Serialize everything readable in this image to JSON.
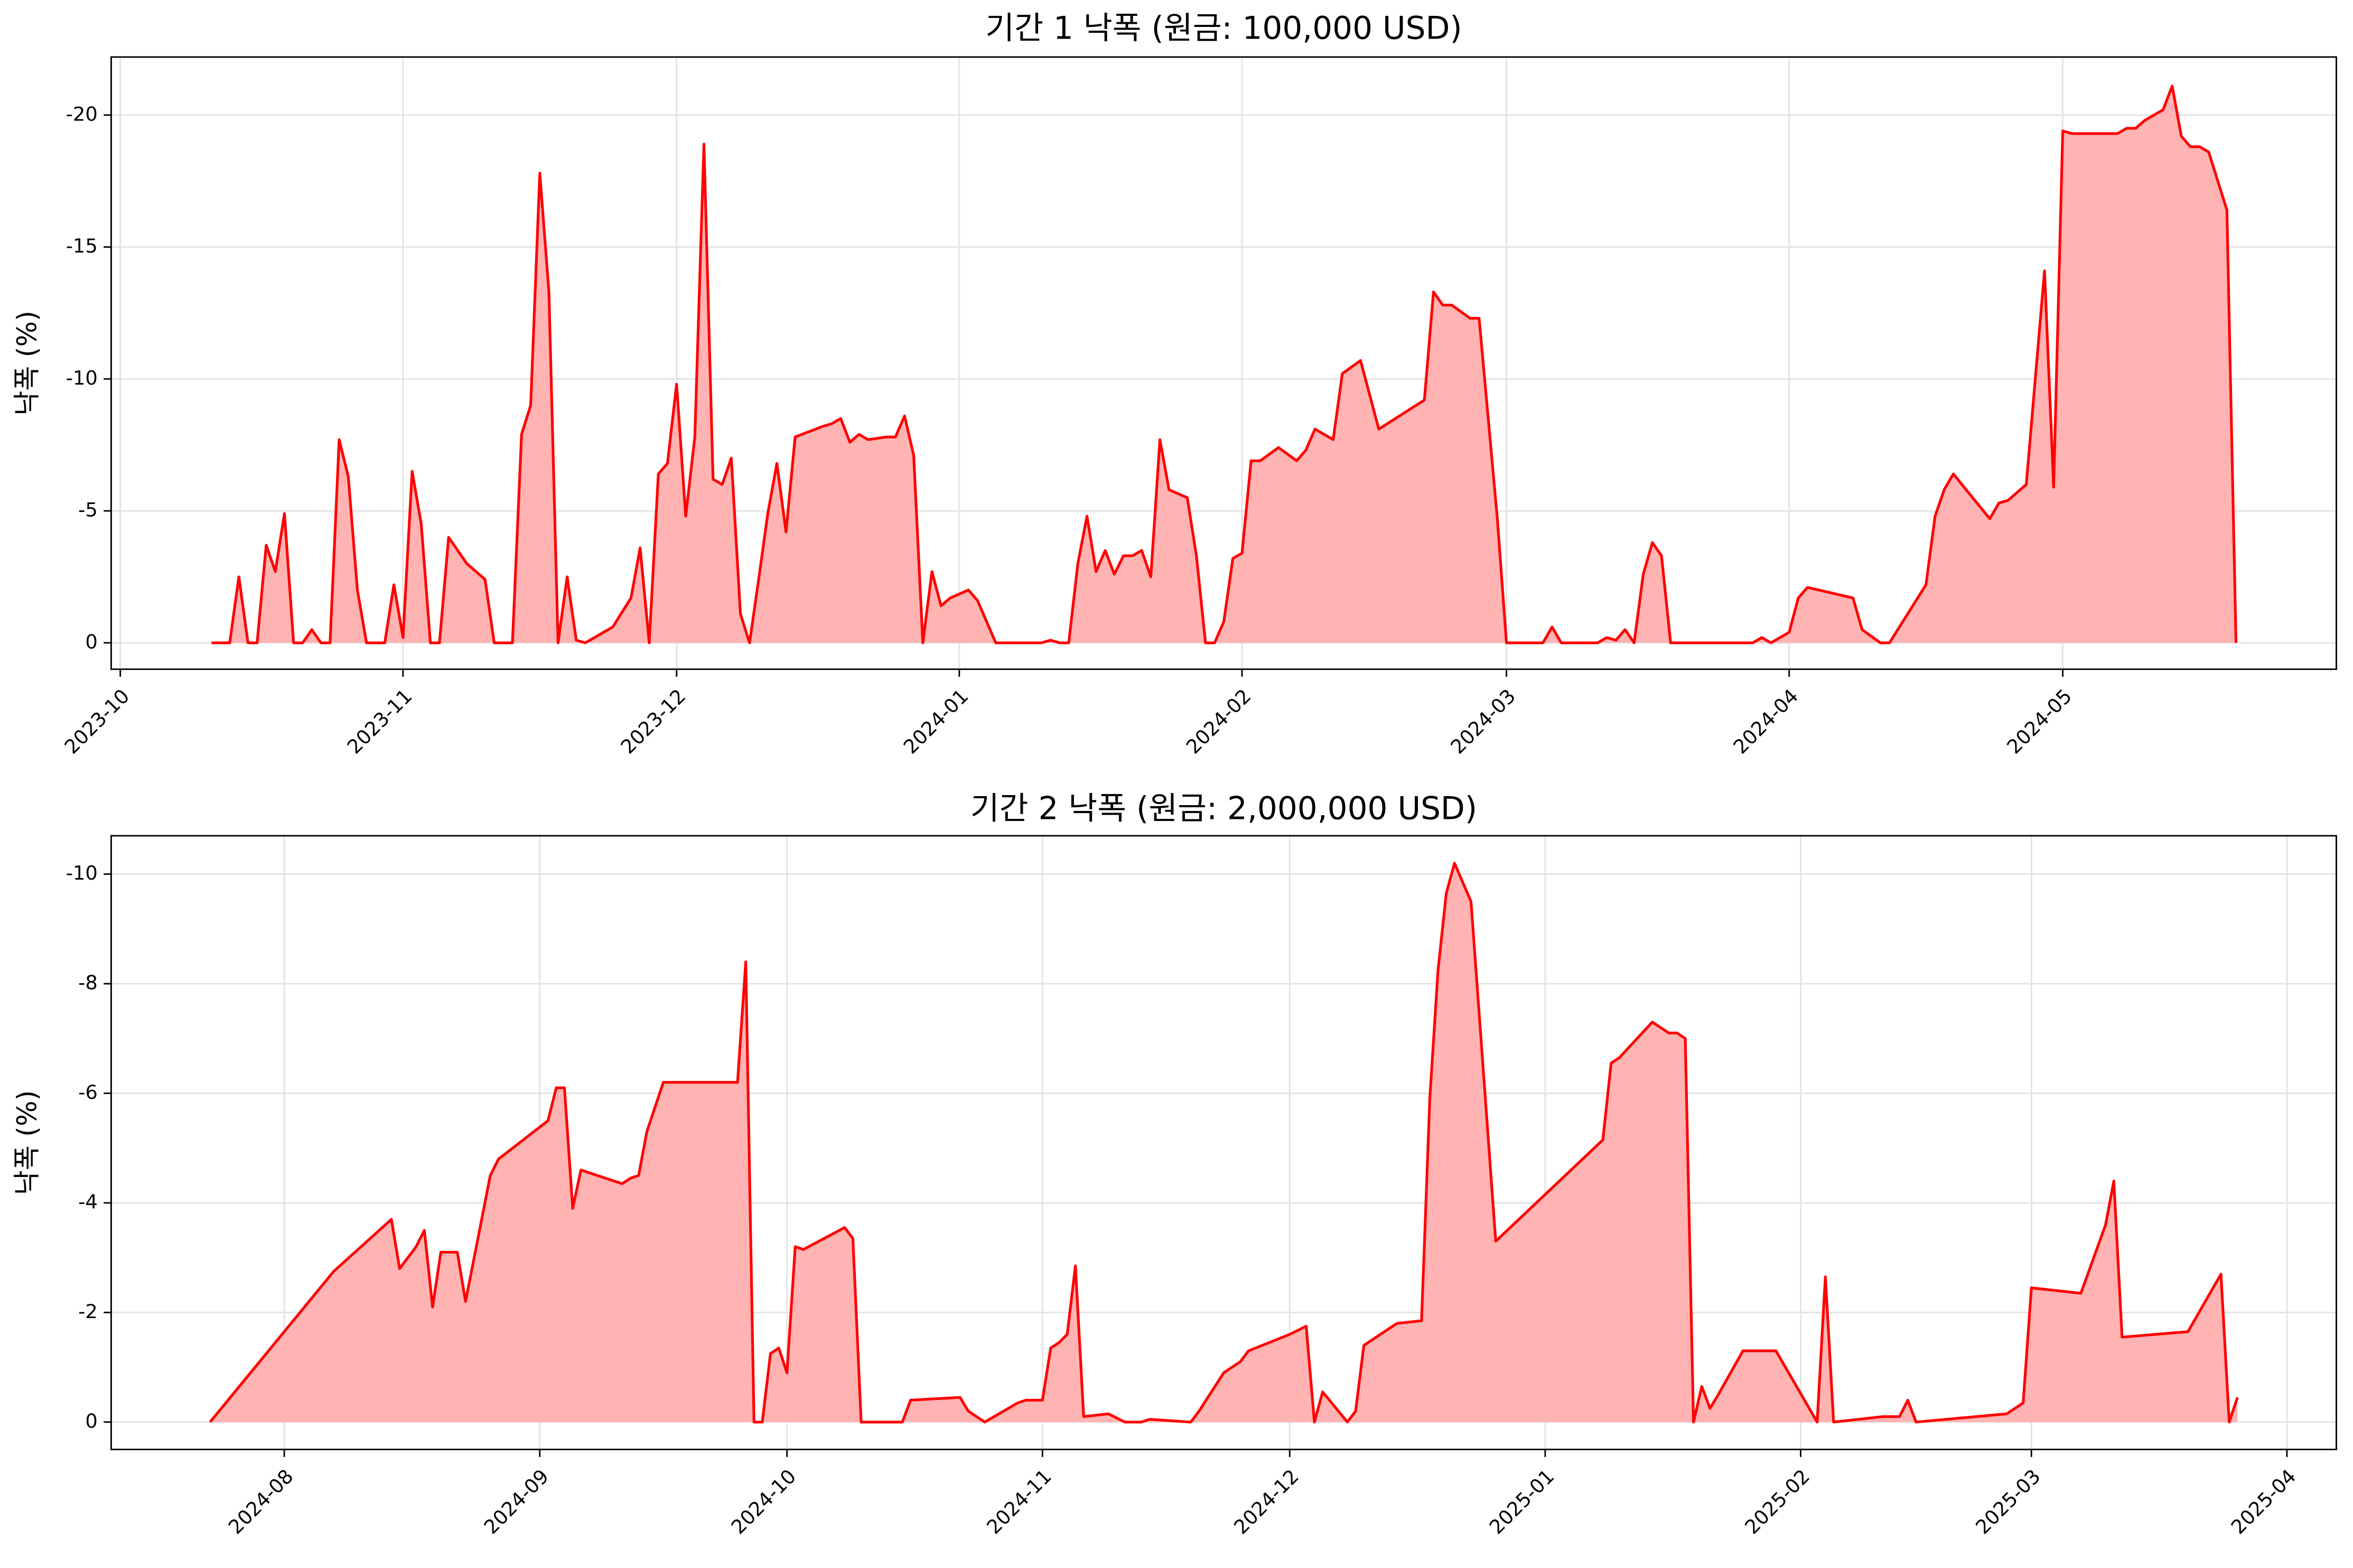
{
  "chart_data": [
    {
      "type": "area",
      "title": "기간 1 낙폭 (원금: 100,000 USD)",
      "y_label": "낙폭 (%)",
      "color": "#ff0000",
      "fill_color": "#ffb3b3",
      "grid": true,
      "xlim": [
        "2023-09-30",
        "2024-05-31"
      ],
      "ylim": [
        1.0,
        -22.2
      ],
      "xticks": [
        "2023-10",
        "2023-11",
        "2023-12",
        "2024-01",
        "2024-02",
        "2024-03",
        "2024-04",
        "2024-05"
      ],
      "yticks": [
        0,
        -5,
        -10,
        -15,
        -20
      ],
      "x": [
        "2023-10-11",
        "2023-10-13",
        "2023-10-14",
        "2023-10-15",
        "2023-10-16",
        "2023-10-17",
        "2023-10-18",
        "2023-10-19",
        "2023-10-20",
        "2023-10-21",
        "2023-10-22",
        "2023-10-23",
        "2023-10-24",
        "2023-10-25",
        "2023-10-26",
        "2023-10-27",
        "2023-10-28",
        "2023-10-30",
        "2023-10-31",
        "2023-11-01",
        "2023-11-02",
        "2023-11-03",
        "2023-11-04",
        "2023-11-05",
        "2023-11-06",
        "2023-11-07",
        "2023-11-08",
        "2023-11-10",
        "2023-11-11",
        "2023-11-13",
        "2023-11-14",
        "2023-11-15",
        "2023-11-16",
        "2023-11-17",
        "2023-11-18",
        "2023-11-19",
        "2023-11-20",
        "2023-11-21",
        "2023-11-24",
        "2023-11-26",
        "2023-11-27",
        "2023-11-28",
        "2023-11-29",
        "2023-11-30",
        "2023-12-01",
        "2023-12-02",
        "2023-12-03",
        "2023-12-04",
        "2023-12-05",
        "2023-12-06",
        "2023-12-07",
        "2023-12-08",
        "2023-12-09",
        "2023-12-10",
        "2023-12-11",
        "2023-12-12",
        "2023-12-13",
        "2023-12-14",
        "2023-12-17",
        "2023-12-18",
        "2023-12-19",
        "2023-12-20",
        "2023-12-21",
        "2023-12-22",
        "2023-12-24",
        "2023-12-25",
        "2023-12-26",
        "2023-12-27",
        "2023-12-28",
        "2023-12-29",
        "2023-12-30",
        "2023-12-31",
        "2024-01-02",
        "2024-01-03",
        "2024-01-05",
        "2024-01-10",
        "2024-01-11",
        "2024-01-12",
        "2024-01-13",
        "2024-01-14",
        "2024-01-15",
        "2024-01-16",
        "2024-01-17",
        "2024-01-18",
        "2024-01-19",
        "2024-01-20",
        "2024-01-21",
        "2024-01-22",
        "2024-01-23",
        "2024-01-24",
        "2024-01-26",
        "2024-01-27",
        "2024-01-28",
        "2024-01-29",
        "2024-01-30",
        "2024-01-31",
        "2024-02-01",
        "2024-02-02",
        "2024-02-03",
        "2024-02-05",
        "2024-02-07",
        "2024-02-08",
        "2024-02-09",
        "2024-02-11",
        "2024-02-12",
        "2024-02-14",
        "2024-02-16",
        "2024-02-21",
        "2024-02-22",
        "2024-02-23",
        "2024-02-24",
        "2024-02-26",
        "2024-02-27",
        "2024-02-29",
        "2024-03-01",
        "2024-03-05",
        "2024-03-06",
        "2024-03-07",
        "2024-03-11",
        "2024-03-12",
        "2024-03-13",
        "2024-03-14",
        "2024-03-15",
        "2024-03-16",
        "2024-03-17",
        "2024-03-18",
        "2024-03-19",
        "2024-03-28",
        "2024-03-29",
        "2024-03-30",
        "2024-04-01",
        "2024-04-02",
        "2024-04-03",
        "2024-04-08",
        "2024-04-09",
        "2024-04-11",
        "2024-04-12",
        "2024-04-16",
        "2024-04-17",
        "2024-04-18",
        "2024-04-19",
        "2024-04-23",
        "2024-04-24",
        "2024-04-25",
        "2024-04-27",
        "2024-04-29",
        "2024-04-30",
        "2024-05-01",
        "2024-05-02",
        "2024-05-07",
        "2024-05-08",
        "2024-05-09",
        "2024-05-10",
        "2024-05-12",
        "2024-05-13",
        "2024-05-14",
        "2024-05-15",
        "2024-05-16",
        "2024-05-17",
        "2024-05-19",
        "2024-05-20"
      ],
      "values": [
        0,
        0,
        -2.5,
        0,
        0,
        -3.7,
        -2.7,
        -4.9,
        0,
        0,
        -0.5,
        0,
        0,
        -7.7,
        -6.3,
        -2.0,
        0,
        0,
        -2.2,
        -0.2,
        -6.5,
        -4.5,
        0,
        0,
        -4.0,
        -3.5,
        -3.0,
        -2.4,
        0,
        0,
        -7.9,
        -9.0,
        -17.8,
        -13.3,
        0,
        -2.5,
        -0.1,
        0,
        -0.6,
        -1.7,
        -3.6,
        0,
        -6.4,
        -6.8,
        -9.8,
        -4.8,
        -7.8,
        -18.9,
        -6.2,
        -6.0,
        -7.0,
        -1.1,
        0,
        -2.4,
        -4.9,
        -6.8,
        -4.2,
        -7.8,
        -8.2,
        -8.3,
        -8.5,
        -7.6,
        -7.9,
        -7.7,
        -7.8,
        -7.8,
        -8.6,
        -7.1,
        0,
        -2.7,
        -1.4,
        -1.7,
        -2.0,
        -1.6,
        0,
        0,
        -0.1,
        0,
        0,
        -3.0,
        -4.8,
        -2.7,
        -3.5,
        -2.6,
        -3.3,
        -3.3,
        -3.5,
        -2.5,
        -7.7,
        -5.8,
        -5.5,
        -3.3,
        0,
        0,
        -0.8,
        -3.2,
        -3.4,
        -6.9,
        -6.9,
        -7.4,
        -6.9,
        -7.3,
        -8.1,
        -7.7,
        -10.2,
        -10.7,
        -8.1,
        -9.2,
        -13.3,
        -12.8,
        -12.8,
        -12.3,
        -12.3,
        -4.7,
        0,
        0,
        -0.6,
        0,
        0,
        -0.2,
        -0.1,
        -0.5,
        0,
        -2.6,
        -3.8,
        -3.3,
        0,
        0,
        -0.2,
        0,
        -0.4,
        -1.7,
        -2.1,
        -1.7,
        -0.5,
        0,
        0,
        -2.2,
        -4.8,
        -5.8,
        -6.4,
        -4.7,
        -5.3,
        -5.4,
        -6.0,
        -14.1,
        -5.9,
        -19.4,
        -19.3,
        -19.3,
        -19.5,
        -19.5,
        -19.8,
        -20.2,
        -21.1,
        -19.2,
        -18.8,
        -18.8,
        -18.6,
        -16.4,
        0
      ]
    },
    {
      "type": "area",
      "title": "기간 2 낙폭 (원금: 2,000,000 USD)",
      "y_label": "낙폭 (%)",
      "color": "#ff0000",
      "fill_color": "#ffb3b3",
      "grid": true,
      "xlim": [
        "2024-07-11",
        "2025-04-07"
      ],
      "ylim": [
        0.5,
        -10.7
      ],
      "xticks": [
        "2024-08",
        "2024-09",
        "2024-10",
        "2024-11",
        "2024-12",
        "2025-01",
        "2025-02",
        "2025-03",
        "2025-04"
      ],
      "yticks": [
        0,
        -2,
        -4,
        -6,
        -8,
        -10
      ],
      "x": [
        "2024-07-23",
        "2024-08-07",
        "2024-08-14",
        "2024-08-15",
        "2024-08-17",
        "2024-08-18",
        "2024-08-19",
        "2024-08-20",
        "2024-08-22",
        "2024-08-23",
        "2024-08-26",
        "2024-08-27",
        "2024-09-02",
        "2024-09-03",
        "2024-09-04",
        "2024-09-05",
        "2024-09-06",
        "2024-09-11",
        "2024-09-12",
        "2024-09-13",
        "2024-09-14",
        "2024-09-16",
        "2024-09-25",
        "2024-09-26",
        "2024-09-27",
        "2024-09-28",
        "2024-09-29",
        "2024-09-30",
        "2024-10-01",
        "2024-10-02",
        "2024-10-03",
        "2024-10-08",
        "2024-10-09",
        "2024-10-10",
        "2024-10-15",
        "2024-10-16",
        "2024-10-22",
        "2024-10-23",
        "2024-10-25",
        "2024-10-29",
        "2024-10-30",
        "2024-11-01",
        "2024-11-02",
        "2024-11-03",
        "2024-11-04",
        "2024-11-05",
        "2024-11-06",
        "2024-11-09",
        "2024-11-11",
        "2024-11-13",
        "2024-11-14",
        "2024-11-19",
        "2024-11-20",
        "2024-11-23",
        "2024-11-25",
        "2024-11-26",
        "2024-12-01",
        "2024-12-03",
        "2024-12-04",
        "2024-12-05",
        "2024-12-08",
        "2024-12-09",
        "2024-12-10",
        "2024-12-14",
        "2024-12-17",
        "2024-12-18",
        "2024-12-19",
        "2024-12-20",
        "2024-12-21",
        "2024-12-23",
        "2024-12-26",
        "2025-01-08",
        "2025-01-09",
        "2025-01-10",
        "2025-01-14",
        "2025-01-16",
        "2025-01-17",
        "2025-01-18",
        "2025-01-19",
        "2025-01-20",
        "2025-01-21",
        "2025-01-22",
        "2025-01-25",
        "2025-01-29",
        "2025-02-03",
        "2025-02-04",
        "2025-02-05",
        "2025-02-11",
        "2025-02-13",
        "2025-02-14",
        "2025-02-15",
        "2025-02-26",
        "2025-02-27",
        "2025-02-28",
        "2025-03-01",
        "2025-03-07",
        "2025-03-10",
        "2025-03-11",
        "2025-03-12",
        "2025-03-20",
        "2025-03-24",
        "2025-03-25",
        "2025-03-26"
      ],
      "values": [
        0,
        -2.75,
        -3.7,
        -2.8,
        -3.2,
        -3.5,
        -2.1,
        -3.1,
        -3.1,
        -2.2,
        -4.5,
        -4.8,
        -5.5,
        -6.1,
        -6.1,
        -3.9,
        -4.6,
        -4.35,
        -4.45,
        -4.5,
        -5.3,
        -6.2,
        -6.2,
        -8.4,
        0,
        0,
        -1.25,
        -1.35,
        -0.9,
        -3.2,
        -3.15,
        -3.55,
        -3.35,
        0,
        0,
        -0.4,
        -0.45,
        -0.2,
        0,
        -0.35,
        -0.4,
        -0.4,
        -1.35,
        -1.45,
        -1.6,
        -2.85,
        -0.1,
        -0.15,
        0,
        0,
        -0.05,
        0,
        -0.2,
        -0.9,
        -1.1,
        -1.3,
        -1.6,
        -1.75,
        0,
        -0.55,
        0,
        -0.2,
        -1.4,
        -1.8,
        -1.85,
        -5.9,
        -8.25,
        -9.65,
        -10.2,
        -9.5,
        -3.3,
        -5.15,
        -6.55,
        -6.65,
        -7.3,
        -7.1,
        -7.1,
        -7.0,
        0,
        -0.65,
        -0.25,
        -0.5,
        -1.3,
        -1.3,
        0,
        -2.65,
        0,
        -0.1,
        -0.1,
        -0.4,
        0,
        -0.15,
        -0.25,
        -0.35,
        -2.45,
        -2.35,
        -3.6,
        -4.4,
        -1.55,
        -1.65,
        -2.7,
        0,
        -0.45
      ]
    }
  ]
}
